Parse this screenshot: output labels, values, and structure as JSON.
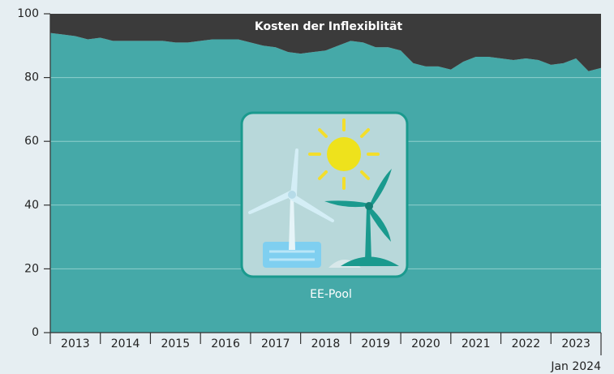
{
  "chart_data": {
    "type": "stacked-area",
    "x": [
      2013,
      2013.25,
      2013.5,
      2013.75,
      2014,
      2014.25,
      2014.5,
      2014.75,
      2015,
      2015.25,
      2015.5,
      2015.75,
      2016,
      2016.25,
      2016.5,
      2016.75,
      2017,
      2017.25,
      2017.5,
      2017.75,
      2018,
      2018.25,
      2018.5,
      2018.75,
      2019,
      2019.25,
      2019.5,
      2019.75,
      2020,
      2020.25,
      2020.5,
      2020.75,
      2021,
      2021.25,
      2021.5,
      2021.75,
      2022,
      2022.25,
      2022.5,
      2022.75,
      2023,
      2023.25,
      2023.5,
      2023.75,
      2024
    ],
    "series": [
      {
        "name": "EE-Pool",
        "color": "#45a9a8",
        "values": [
          94,
          93.5,
          93,
          92,
          92.5,
          91.5,
          91.5,
          91.5,
          91.5,
          91.5,
          91,
          91,
          91.5,
          92,
          92,
          92,
          91,
          90,
          89.5,
          88,
          87.5,
          88,
          88.5,
          90,
          91.5,
          91,
          89.5,
          89.5,
          88.5,
          84.5,
          83.5,
          83.5,
          82.5,
          85,
          86.5,
          86.5,
          86,
          85.5,
          86,
          85.5,
          84,
          84.5,
          86,
          82,
          83
        ]
      },
      {
        "name": "Kosten der Inflexiblität",
        "color": "#3b3b3b",
        "values": [
          6,
          6.5,
          7,
          8,
          7.5,
          8.5,
          8.5,
          8.5,
          8.5,
          8.5,
          9,
          9,
          8.5,
          8,
          8,
          8,
          9,
          10,
          10.5,
          12,
          12.5,
          12,
          11.5,
          10,
          8.5,
          9,
          10.5,
          10.5,
          11.5,
          15.5,
          16.5,
          16.5,
          17.5,
          15,
          13.5,
          13.5,
          14,
          14.5,
          14,
          14.5,
          16,
          15.5,
          14,
          18,
          17
        ]
      }
    ],
    "xlim": [
      2013,
      2024
    ],
    "xticks": [
      {
        "value": 2013,
        "label": "2013"
      },
      {
        "value": 2014,
        "label": "2014"
      },
      {
        "value": 2015,
        "label": "2015"
      },
      {
        "value": 2016,
        "label": "2016"
      },
      {
        "value": 2017,
        "label": "2017"
      },
      {
        "value": 2018,
        "label": "2018"
      },
      {
        "value": 2019,
        "label": "2019"
      },
      {
        "value": 2020,
        "label": "2020"
      },
      {
        "value": 2021,
        "label": "2021"
      },
      {
        "value": 2022,
        "label": "2022"
      },
      {
        "value": 2023,
        "label": "2023"
      },
      {
        "value": 2024,
        "label": "Jan 2024"
      }
    ],
    "ylim": [
      0,
      100
    ],
    "yticks": [
      0,
      20,
      40,
      60,
      80,
      100
    ],
    "grid": true
  }
}
